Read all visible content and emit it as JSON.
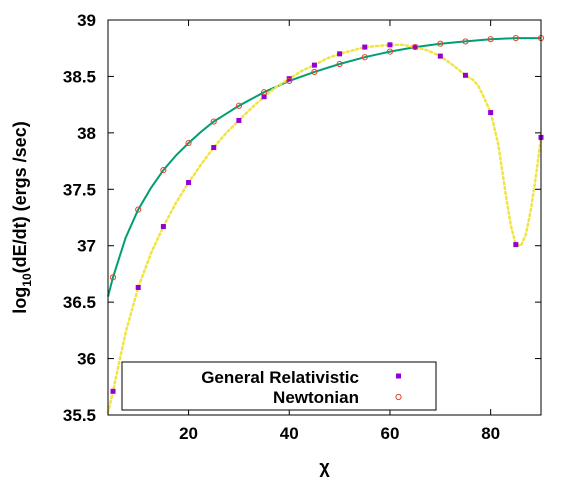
{
  "chart_data": {
    "type": "line",
    "xlabel": "χ",
    "ylabel_main": "log",
    "ylabel_sub": "10",
    "ylabel_rest": "(dE/dt) (ergs /sec)",
    "xlim": [
      4,
      90
    ],
    "ylim": [
      35.5,
      39
    ],
    "x_ticks": [
      20,
      40,
      60,
      80
    ],
    "y_ticks": [
      35.5,
      36,
      36.5,
      37,
      37.5,
      38,
      38.5,
      39
    ],
    "grid": false,
    "legend_position": "bottom-left",
    "series": [
      {
        "name": "General Relativistic",
        "color": "#9400d3",
        "marker": "square",
        "points": [
          [
            5,
            35.71
          ],
          [
            10,
            36.63
          ],
          [
            15,
            37.17
          ],
          [
            20,
            37.56
          ],
          [
            25,
            37.87
          ],
          [
            30,
            38.11
          ],
          [
            35,
            38.32
          ],
          [
            40,
            38.48
          ],
          [
            45,
            38.6
          ],
          [
            50,
            38.7
          ],
          [
            55,
            38.76
          ],
          [
            60,
            38.78
          ],
          [
            65,
            38.76
          ],
          [
            70,
            38.68
          ],
          [
            75,
            38.51
          ],
          [
            80,
            38.18
          ],
          [
            85,
            37.01
          ],
          [
            90,
            37.96
          ]
        ]
      },
      {
        "name": "Newtonian",
        "color": "#e8442a",
        "marker": "circle",
        "points": [
          [
            5,
            36.72
          ],
          [
            10,
            37.32
          ],
          [
            15,
            37.67
          ],
          [
            20,
            37.91
          ],
          [
            25,
            38.1
          ],
          [
            30,
            38.24
          ],
          [
            35,
            38.36
          ],
          [
            40,
            38.46
          ],
          [
            45,
            38.54
          ],
          [
            50,
            38.61
          ],
          [
            55,
            38.67
          ],
          [
            60,
            38.72
          ],
          [
            65,
            38.76
          ],
          [
            70,
            38.79
          ],
          [
            75,
            38.81
          ],
          [
            80,
            38.83
          ],
          [
            85,
            38.84
          ],
          [
            90,
            38.84
          ]
        ]
      }
    ],
    "curves": [
      {
        "color": "#009e73",
        "style": "solid",
        "points": [
          [
            4,
            36.55
          ],
          [
            5,
            36.72
          ],
          [
            7.5,
            37.07
          ],
          [
            10,
            37.32
          ],
          [
            12.5,
            37.51
          ],
          [
            15,
            37.67
          ],
          [
            17.5,
            37.8
          ],
          [
            20,
            37.91
          ],
          [
            22.5,
            38.01
          ],
          [
            25,
            38.1
          ],
          [
            27.5,
            38.17
          ],
          [
            30,
            38.24
          ],
          [
            32.5,
            38.3
          ],
          [
            35,
            38.36
          ],
          [
            37.5,
            38.41
          ],
          [
            40,
            38.46
          ],
          [
            45,
            38.54
          ],
          [
            50,
            38.61
          ],
          [
            55,
            38.67
          ],
          [
            60,
            38.72
          ],
          [
            65,
            38.76
          ],
          [
            70,
            38.79
          ],
          [
            75,
            38.81
          ],
          [
            80,
            38.83
          ],
          [
            85,
            38.84
          ],
          [
            90,
            38.84
          ]
        ]
      },
      {
        "color": "#f0e442",
        "style": "dotted",
        "points": [
          [
            4,
            35.52
          ],
          [
            5,
            35.71
          ],
          [
            7.5,
            36.23
          ],
          [
            10,
            36.63
          ],
          [
            12.5,
            36.93
          ],
          [
            15,
            37.17
          ],
          [
            17.5,
            37.38
          ],
          [
            20,
            37.56
          ],
          [
            22.5,
            37.72
          ],
          [
            25,
            37.87
          ],
          [
            27.5,
            38.0
          ],
          [
            30,
            38.11
          ],
          [
            32.5,
            38.22
          ],
          [
            35,
            38.32
          ],
          [
            37.5,
            38.41
          ],
          [
            40,
            38.48
          ],
          [
            42.5,
            38.55
          ],
          [
            45,
            38.6
          ],
          [
            47.5,
            38.66
          ],
          [
            50,
            38.7
          ],
          [
            52.5,
            38.73
          ],
          [
            55,
            38.76
          ],
          [
            57.5,
            38.77
          ],
          [
            60,
            38.78
          ],
          [
            62.5,
            38.78
          ],
          [
            65,
            38.76
          ],
          [
            67.5,
            38.73
          ],
          [
            70,
            38.68
          ],
          [
            72.5,
            38.6
          ],
          [
            75,
            38.51
          ],
          [
            76.5,
            38.47
          ],
          [
            77.5,
            38.42
          ],
          [
            78.5,
            38.33
          ],
          [
            80,
            38.18
          ],
          [
            81.5,
            37.9
          ],
          [
            83,
            37.45
          ],
          [
            84,
            37.18
          ],
          [
            85,
            37.01
          ],
          [
            86,
            37.0
          ],
          [
            87,
            37.1
          ],
          [
            88,
            37.32
          ],
          [
            89,
            37.62
          ],
          [
            90,
            37.96
          ]
        ]
      }
    ]
  }
}
